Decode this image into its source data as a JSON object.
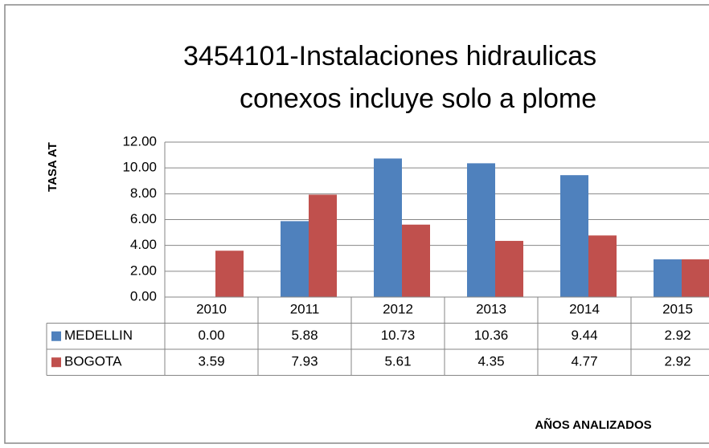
{
  "chart_data": {
    "type": "bar",
    "title": [
      "3454101-Instalaciones hidraulicas",
      "conexos incluye solo   a plome"
    ],
    "y_label": "TASA AT",
    "x_label": "AÑOS ANALIZADOS",
    "categories": [
      "2010",
      "2011",
      "2012",
      "2013",
      "2014",
      "2015"
    ],
    "series": [
      {
        "name": "MEDELLIN",
        "color": "#4f81bd",
        "values": [
          0.0,
          5.88,
          10.73,
          10.36,
          9.44,
          2.92
        ],
        "value_labels": [
          "0.00",
          "5.88",
          "10.73",
          "10.36",
          "9.44",
          "2.92"
        ]
      },
      {
        "name": "BOGOTA",
        "color": "#c0504d",
        "values": [
          3.59,
          7.93,
          5.61,
          4.35,
          4.77,
          2.92
        ],
        "value_labels": [
          "3.59",
          "7.93",
          "5.61",
          "4.35",
          "4.77",
          "2.92"
        ]
      }
    ],
    "ylim": [
      0,
      12
    ],
    "yticks": [
      {
        "value": 0,
        "label": "0.00"
      },
      {
        "value": 2,
        "label": "2.00"
      },
      {
        "value": 4,
        "label": "4.00"
      },
      {
        "value": 6,
        "label": "6.00"
      },
      {
        "value": 8,
        "label": "8.00"
      },
      {
        "value": 10,
        "label": "10.00"
      },
      {
        "value": 12,
        "label": "12.00"
      }
    ],
    "grid": true,
    "data_table": true
  }
}
